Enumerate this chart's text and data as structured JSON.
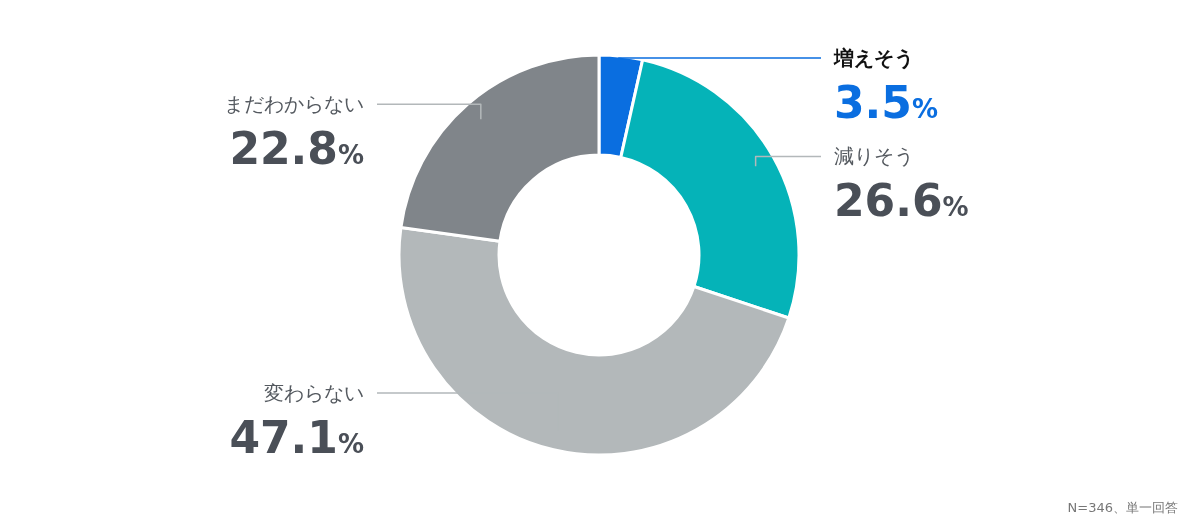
{
  "chart_data": {
    "type": "donut",
    "categories": [
      "増えそう",
      "減りそう",
      "変わらない",
      "まだわからない"
    ],
    "values": [
      3.5,
      26.6,
      47.1,
      22.8
    ],
    "colors": [
      "#0a6ee0",
      "#05b3b8",
      "#b3b8ba",
      "#80858a"
    ],
    "value_labels": [
      "3.5%",
      "26.6%",
      "47.1%",
      "22.8%"
    ],
    "annotations": [
      "N=346、単一回答"
    ],
    "legend": false
  }
}
